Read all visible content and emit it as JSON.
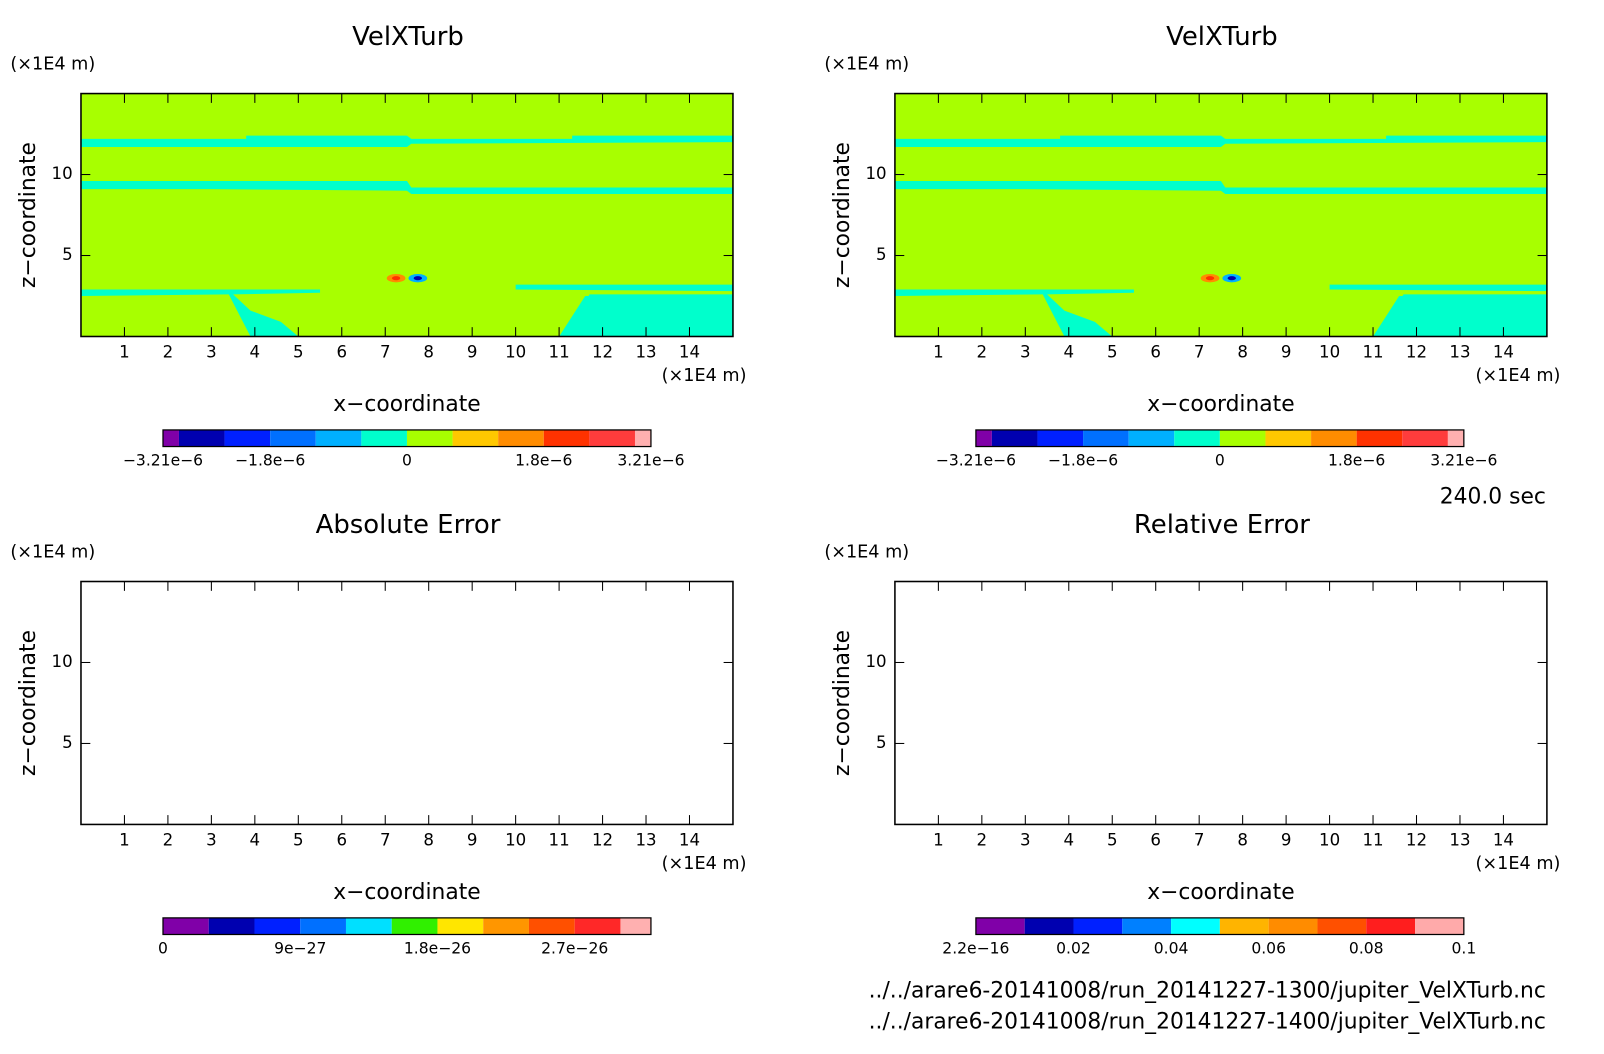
{
  "chart_data": [
    {
      "type": "contour",
      "title": "VelXTurb",
      "xlabel": "x−coordinate",
      "ylabel": "z−coordinate",
      "x_unit": "(×1E4 m)",
      "y_unit": "(×1E4 m)",
      "xlim": [
        0,
        15
      ],
      "ylim": [
        0,
        15
      ],
      "xticks": [
        1,
        2,
        3,
        4,
        5,
        6,
        7,
        8,
        9,
        10,
        11,
        12,
        13,
        14
      ],
      "yticks": [
        5,
        10
      ],
      "field": true,
      "colorbar": {
        "levels": [
          -3.21e-06,
          -3e-06,
          -2.4e-06,
          -1.8e-06,
          -1.2e-06,
          -6e-07,
          0,
          6e-07,
          1.2e-06,
          1.8e-06,
          2.4e-06,
          3e-06,
          3.21e-06
        ],
        "colors": [
          "#8000a8",
          "#0000b0",
          "#0020ff",
          "#0070ff",
          "#00b0ff",
          "#00ffcc",
          "#a8ff00",
          "#ffc800",
          "#ff8c00",
          "#ff3200",
          "#ff3c3c",
          "#ffb0b0"
        ],
        "ticks": [
          {
            "value": -3.21e-06,
            "label": "−3.21e−6"
          },
          {
            "value": -1.8e-06,
            "label": "−1.8e−6"
          },
          0,
          {
            "value": 1.8e-06,
            "label": "1.8e−6"
          },
          {
            "value": 3.21e-06,
            "label": "3.21e−6"
          }
        ]
      }
    },
    {
      "type": "contour",
      "title": "VelXTurb",
      "xlabel": "x−coordinate",
      "ylabel": "z−coordinate",
      "x_unit": "(×1E4 m)",
      "y_unit": "(×1E4 m)",
      "xlim": [
        0,
        15
      ],
      "ylim": [
        0,
        15
      ],
      "xticks": [
        1,
        2,
        3,
        4,
        5,
        6,
        7,
        8,
        9,
        10,
        11,
        12,
        13,
        14
      ],
      "yticks": [
        5,
        10
      ],
      "field": true,
      "colorbar": {
        "levels": [
          -3.21e-06,
          -3e-06,
          -2.4e-06,
          -1.8e-06,
          -1.2e-06,
          -6e-07,
          0,
          6e-07,
          1.2e-06,
          1.8e-06,
          2.4e-06,
          3e-06,
          3.21e-06
        ],
        "colors": [
          "#8000a8",
          "#0000b0",
          "#0020ff",
          "#0070ff",
          "#00b0ff",
          "#00ffcc",
          "#a8ff00",
          "#ffc800",
          "#ff8c00",
          "#ff3200",
          "#ff3c3c",
          "#ffb0b0"
        ],
        "ticks": [
          {
            "value": -3.21e-06,
            "label": "−3.21e−6"
          },
          {
            "value": -1.8e-06,
            "label": "−1.8e−6"
          },
          0,
          {
            "value": 1.8e-06,
            "label": "1.8e−6"
          },
          {
            "value": 3.21e-06,
            "label": "3.21e−6"
          }
        ]
      }
    },
    {
      "type": "contour",
      "title": "Absolute Error",
      "xlabel": "x−coordinate",
      "ylabel": "z−coordinate",
      "x_unit": "(×1E4 m)",
      "y_unit": "(×1E4 m)",
      "xlim": [
        0,
        15
      ],
      "ylim": [
        0,
        15
      ],
      "xticks": [
        1,
        2,
        3,
        4,
        5,
        6,
        7,
        8,
        9,
        10,
        11,
        12,
        13,
        14
      ],
      "yticks": [
        5,
        10
      ],
      "field": false,
      "colorbar": {
        "levels": [
          0,
          3e-27,
          6e-27,
          9e-27,
          1.2e-26,
          1.5e-26,
          1.8e-26,
          2.1e-26,
          2.4e-26,
          2.7e-26,
          3e-26,
          3.2e-26
        ],
        "colors": [
          "#8000a8",
          "#0000b0",
          "#0020ff",
          "#0070ff",
          "#00e0ff",
          "#30f000",
          "#ffe600",
          "#ff9600",
          "#ff5000",
          "#ff2828",
          "#ffb0b0"
        ],
        "ticks": [
          0,
          {
            "value": 9e-27,
            "label": "9e−27"
          },
          {
            "value": 1.8e-26,
            "label": "1.8e−26"
          },
          {
            "value": 2.7e-26,
            "label": "2.7e−26"
          }
        ]
      }
    },
    {
      "type": "contour",
      "title": "Relative Error",
      "xlabel": "x−coordinate",
      "ylabel": "z−coordinate",
      "x_unit": "(×1E4 m)",
      "y_unit": "(×1E4 m)",
      "xlim": [
        0,
        15
      ],
      "ylim": [
        0,
        15
      ],
      "xticks": [
        1,
        2,
        3,
        4,
        5,
        6,
        7,
        8,
        9,
        10,
        11,
        12,
        13,
        14
      ],
      "yticks": [
        5,
        10
      ],
      "field": false,
      "colorbar": {
        "levels": [
          0,
          0.01,
          0.02,
          0.03,
          0.04,
          0.05,
          0.06,
          0.07,
          0.08,
          0.09,
          0.1
        ],
        "colors": [
          "#8000a8",
          "#0000b0",
          "#0020ff",
          "#0080ff",
          "#00ffff",
          "#ffb400",
          "#ff8c00",
          "#ff5000",
          "#ff1e1e",
          "#ffaaaa"
        ],
        "ticks": [
          {
            "value": 2.2e-16,
            "label": "2.2e−16"
          },
          0.02,
          0.04,
          0.06,
          0.08,
          0.1
        ]
      }
    }
  ],
  "time": "240.0 sec",
  "files": [
    "../../arare6-20141008/run_20141227-1300/jupiter_VelXTurb.nc",
    "../../arare6-20141008/run_20141227-1400/jupiter_VelXTurb.nc"
  ]
}
